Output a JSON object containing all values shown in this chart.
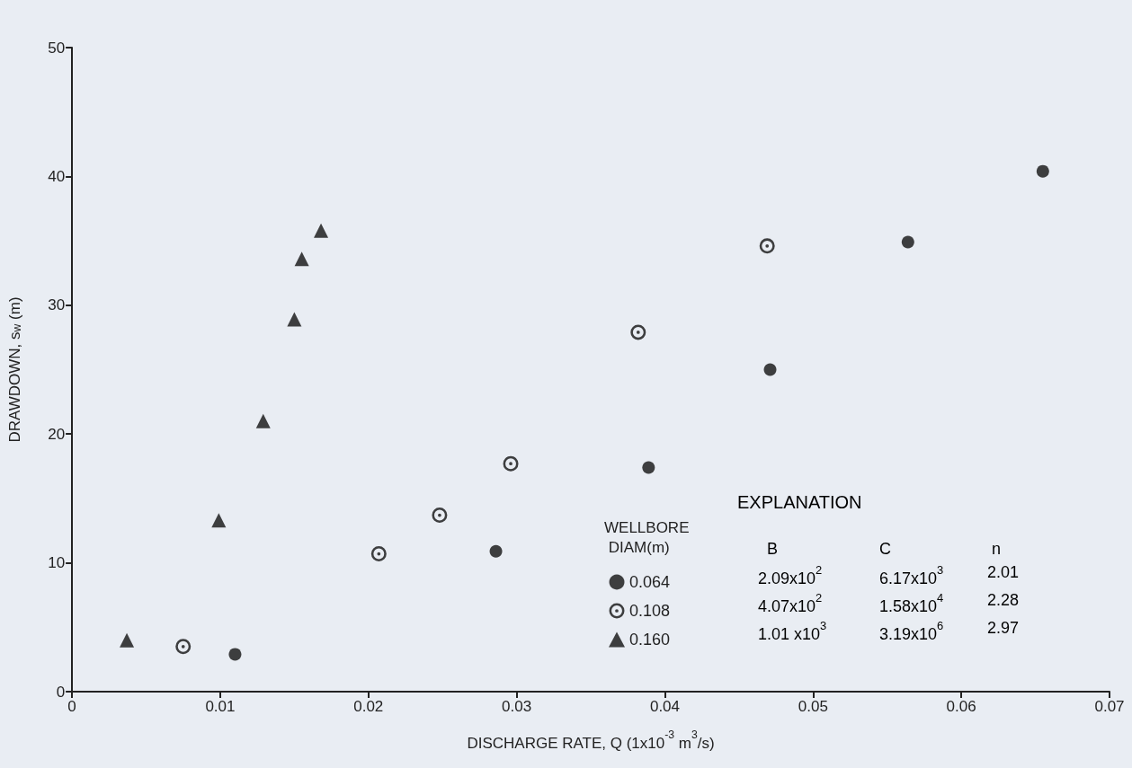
{
  "chart_data": {
    "type": "scatter",
    "xlabel": "DISCHARGE RATE, Q (1x10$^{-3}$ m$^{3}$/s)",
    "ylabel": "DRAWDOWN, s$_{w}$ (m)",
    "legend_title": "WELLBORE DIAM(m)",
    "legend": "bottom right",
    "grid": false,
    "xlim": [
      0,
      0.07
    ],
    "xticks": [
      0,
      0.01,
      0.02,
      0.03,
      0.04,
      0.05,
      0.06,
      0.07
    ],
    "ylim": [
      0,
      50
    ],
    "yticks": [
      0,
      10,
      20,
      30,
      40,
      50
    ],
    "series": [
      {
        "name": "0.064",
        "color": "#111111",
        "marker": "circle",
        "x": [
          0.011,
          0.0286,
          0.0389,
          0.0471,
          0.0564,
          0.0655
        ],
        "values": [
          2.9,
          10.9,
          17.4,
          25.0,
          34.9,
          40.4
        ]
      },
      {
        "name": "0.108",
        "color": "#111111",
        "marker": "circle-dot",
        "x": [
          0.0075,
          0.0207,
          0.0248,
          0.0296,
          0.0382,
          0.0469
        ],
        "values": [
          3.5,
          10.7,
          13.7,
          17.7,
          27.9,
          34.6
        ]
      },
      {
        "name": "0.160",
        "color": "#111111",
        "marker": "triangle",
        "x": [
          0.0037,
          0.0099,
          0.0129,
          0.015,
          0.0155,
          0.0168
        ],
        "values": [
          4.0,
          13.3,
          21.0,
          28.9,
          33.6,
          35.8
        ]
      }
    ],
    "annotations": [
      "EXPLANATION",
      "B",
      "C",
      "n",
      "2.09x10$^{2}$",
      "6.17x10$^{3}$",
      "2.01",
      "4.07x10$^{2}$",
      "1.58x10$^{4}$",
      "2.28",
      "1.01 x10$^{3}$",
      "3.19x10$^{6}$",
      "2.97"
    ]
  }
}
